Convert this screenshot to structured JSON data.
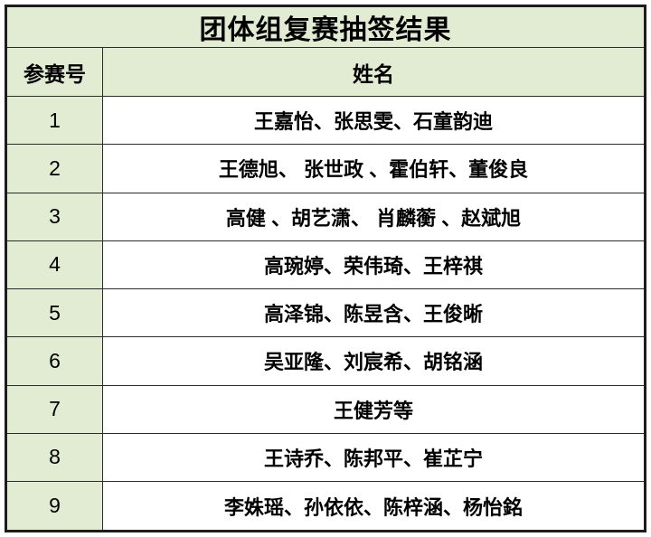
{
  "table": {
    "title": "团体组复赛抽签结果",
    "columns": {
      "no": "参赛号",
      "names": "姓名"
    },
    "rows": [
      {
        "no": "1",
        "names": "王嘉怡、张思雯、石童韵迪"
      },
      {
        "no": "2",
        "names": "王德旭、 张世政 、霍伯轩、董俊良"
      },
      {
        "no": "3",
        "names": "高健 、胡艺潇、 肖麟蘅 、赵斌旭"
      },
      {
        "no": "4",
        "names": "高琬婷、荣伟琦、王梓祺"
      },
      {
        "no": "5",
        "names": "高泽锦、陈昱含、王俊晰"
      },
      {
        "no": "6",
        "names": "吴亚隆、刘宸希、胡铭涵"
      },
      {
        "no": "7",
        "names": "王健芳等"
      },
      {
        "no": "8",
        "names": "王诗乔、陈邦平、崔芷宁"
      },
      {
        "no": "9",
        "names": "李姝瑶、孙依依、陈梓涵、杨怡銘"
      }
    ],
    "colors": {
      "cell_green": "#e1ecd3",
      "name_cell_bg": "#ffffff",
      "border": "#2b2b2b",
      "text": "#000000"
    }
  }
}
